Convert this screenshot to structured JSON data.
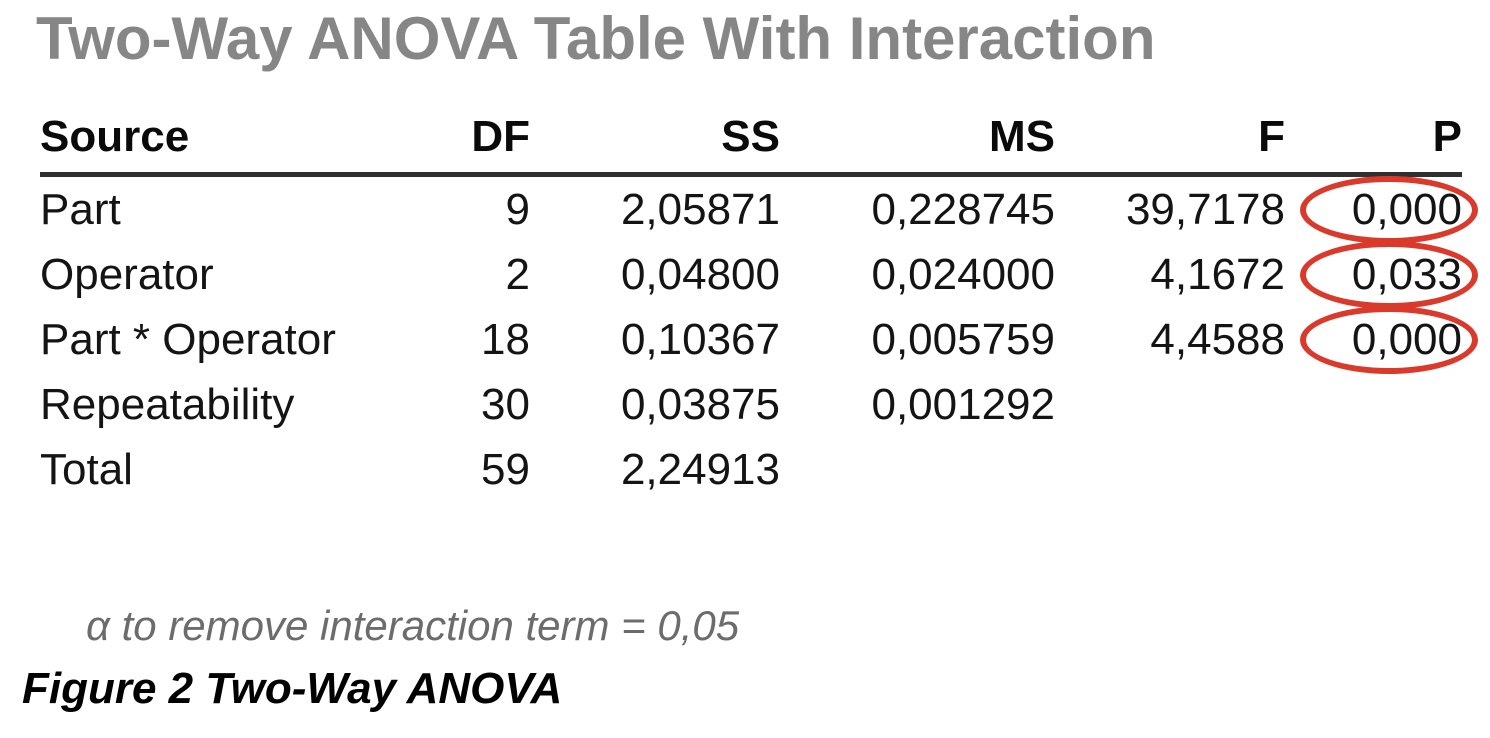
{
  "title": "Two-Way ANOVA Table With Interaction",
  "table": {
    "headers": [
      "Source",
      "DF",
      "SS",
      "MS",
      "F",
      "P"
    ],
    "rows": [
      {
        "source": "Part",
        "df": "9",
        "ss": "2,05871",
        "ms": "0,228745",
        "f": "39,7178",
        "p": "0,000",
        "p_circled": true
      },
      {
        "source": "Operator",
        "df": "2",
        "ss": "0,04800",
        "ms": "0,024000",
        "f": "4,1672",
        "p": "0,033",
        "p_circled": true
      },
      {
        "source": "Part * Operator",
        "df": "18",
        "ss": "0,10367",
        "ms": "0,005759",
        "f": "4,4588",
        "p": "0,000",
        "p_circled": true
      },
      {
        "source": "Repeatability",
        "df": "30",
        "ss": "0,03875",
        "ms": "0,001292",
        "f": "",
        "p": "",
        "p_circled": false
      },
      {
        "source": "Total",
        "df": "59",
        "ss": "2,24913",
        "ms": "",
        "f": "",
        "p": "",
        "p_circled": false
      }
    ]
  },
  "note": "α to remove interaction term = 0,05",
  "caption": "Figure 2 Two-Way ANOVA",
  "colors": {
    "annotation_red": "#d93a2b",
    "title_gray": "#868686",
    "header_rule": "#303030"
  },
  "chart_data": {
    "type": "table",
    "title": "Two-Way ANOVA Table With Interaction",
    "columns": [
      "Source",
      "DF",
      "SS",
      "MS",
      "F",
      "P"
    ],
    "rows": [
      [
        "Part",
        9,
        "2,05871",
        "0,228745",
        "39,7178",
        "0,000"
      ],
      [
        "Operator",
        2,
        "0,04800",
        "0,024000",
        "4,1672",
        "0,033"
      ],
      [
        "Part * Operator",
        18,
        "0,10367",
        "0,005759",
        "4,4588",
        "0,000"
      ],
      [
        "Repeatability",
        30,
        "0,03875",
        "0,001292",
        "",
        ""
      ],
      [
        "Total",
        59,
        "2,24913",
        "",
        "",
        ""
      ]
    ],
    "annotations": "P values of rows Part, Operator and Part * Operator are circled in red",
    "footnote": "α to remove interaction term = 0,05",
    "caption": "Figure 2 Two-Way ANOVA"
  }
}
